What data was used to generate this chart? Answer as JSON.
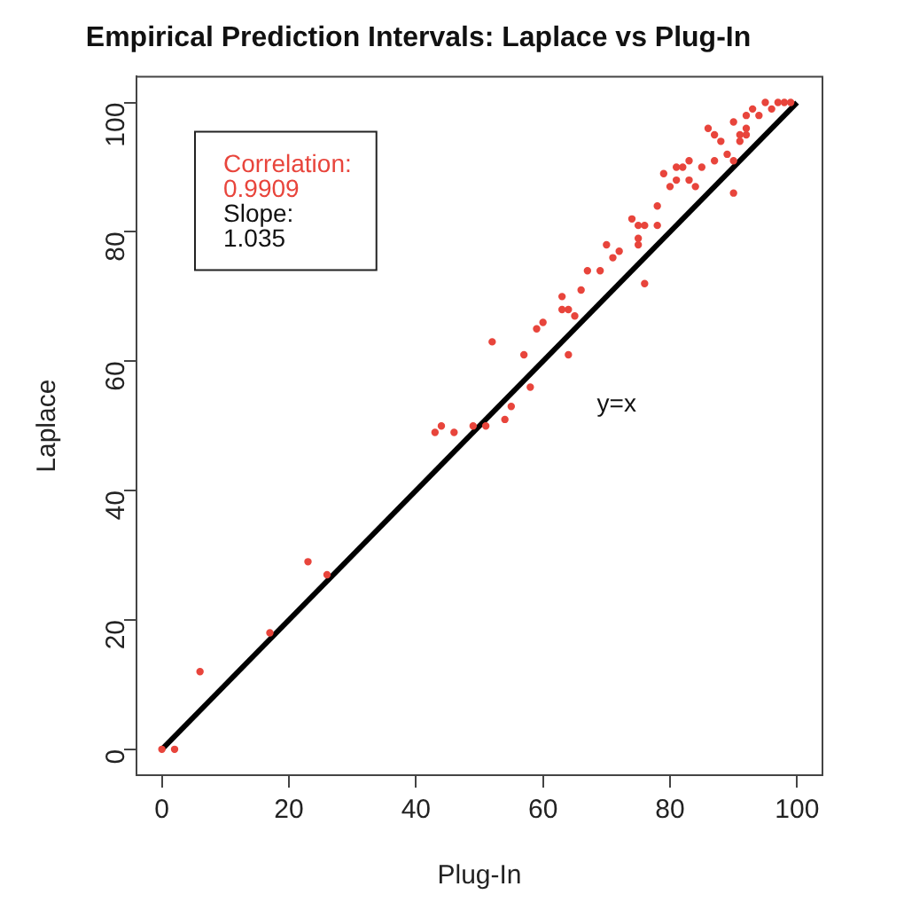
{
  "chart_data": {
    "type": "scatter",
    "title": "Empirical Prediction Intervals: Laplace vs Plug-In",
    "xlabel": "Plug-In",
    "ylabel": "Laplace",
    "xlim": [
      -4,
      104
    ],
    "ylim": [
      -4,
      104
    ],
    "xticks": [
      0,
      20,
      40,
      60,
      80,
      100
    ],
    "yticks": [
      0,
      20,
      40,
      60,
      80,
      100
    ],
    "grid": false,
    "legend": false,
    "marker": "circle",
    "series": [
      {
        "color": "#e8453c",
        "x": [
          0,
          2,
          6,
          17,
          23,
          26,
          43,
          44,
          46,
          49,
          51,
          52,
          54,
          55,
          57,
          58,
          59,
          60,
          64,
          63,
          63,
          64,
          65,
          66,
          67,
          69,
          70,
          71,
          72,
          76,
          74,
          75,
          76,
          78,
          75,
          75,
          78,
          79,
          80,
          81,
          82,
          81,
          83,
          83,
          84,
          85,
          86,
          87,
          87,
          88,
          89,
          90,
          90,
          90,
          91,
          92,
          92,
          93,
          94,
          95,
          96,
          97,
          98,
          99,
          91,
          92
        ],
        "values": [
          0,
          0,
          12,
          18,
          29,
          27,
          49,
          50,
          49,
          50,
          50,
          63,
          51,
          53,
          61,
          56,
          65,
          66,
          61,
          70,
          68,
          68,
          67,
          71,
          74,
          74,
          78,
          76,
          77,
          72,
          82,
          81,
          81,
          81,
          79,
          78,
          84,
          89,
          87,
          90,
          90,
          88,
          88,
          91,
          87,
          90,
          96,
          91,
          95,
          94,
          92,
          86,
          91,
          97,
          95,
          98,
          96,
          99,
          98,
          100,
          99,
          100,
          100,
          100,
          94,
          95
        ]
      },
      {
        "type": "line",
        "color": "#000000",
        "x": [
          0,
          100
        ],
        "values": [
          0,
          100
        ],
        "marker": "none"
      }
    ],
    "annotations": [
      "Correlation:",
      "0.9909",
      "Slope:",
      "1.035",
      "y=x"
    ]
  }
}
